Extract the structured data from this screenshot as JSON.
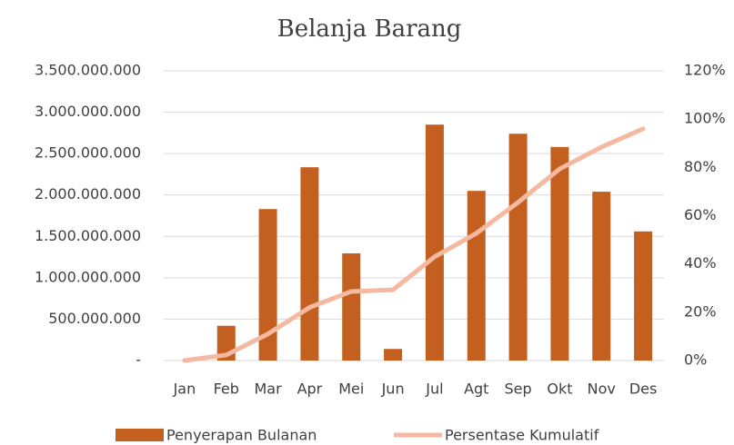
{
  "chart_data": {
    "type": "bar_line",
    "title": "Belanja Barang",
    "categories": [
      "Jan",
      "Feb",
      "Mar",
      "Apr",
      "Mei",
      "Jun",
      "Jul",
      "Agt",
      "Sep",
      "Okt",
      "Nov",
      "Des"
    ],
    "series": [
      {
        "name": "Penyerapan Bulanan",
        "type": "bar",
        "color": "#c4601f",
        "values": [
          0,
          420000000,
          1830000000,
          2335000000,
          1295000000,
          140000000,
          2850000000,
          2050000000,
          2740000000,
          2580000000,
          2040000000,
          1560000000
        ]
      },
      {
        "name": "Persentase Kumulatif",
        "type": "line",
        "axis": "y2",
        "color": "#f4b9a0",
        "values": [
          0,
          2.3,
          11,
          22,
          28.6,
          29.3,
          43,
          52.7,
          65.5,
          79.4,
          88.4,
          96
        ]
      }
    ],
    "ylim": [
      0,
      3500000000
    ],
    "yticks": [
      {
        "value": 0,
        "label": "-"
      },
      {
        "value": 500000000,
        "label": "500.000.000"
      },
      {
        "value": 1000000000,
        "label": "1.000.000.000"
      },
      {
        "value": 1500000000,
        "label": "1.500.000.000"
      },
      {
        "value": 2000000000,
        "label": "2.000.000.000"
      },
      {
        "value": 2500000000,
        "label": "2.500.000.000"
      },
      {
        "value": 3000000000,
        "label": "3.000.000.000"
      },
      {
        "value": 3500000000,
        "label": "3.500.000.000"
      }
    ],
    "y2lim": [
      0,
      120
    ],
    "y2ticks": [
      {
        "value": 0,
        "label": "0%"
      },
      {
        "value": 20,
        "label": "20%"
      },
      {
        "value": 40,
        "label": "40%"
      },
      {
        "value": 60,
        "label": "60%"
      },
      {
        "value": 80,
        "label": "80%"
      },
      {
        "value": 100,
        "label": "100%"
      },
      {
        "value": 120,
        "label": "120%"
      }
    ],
    "grid": true,
    "legend": "bottom"
  }
}
